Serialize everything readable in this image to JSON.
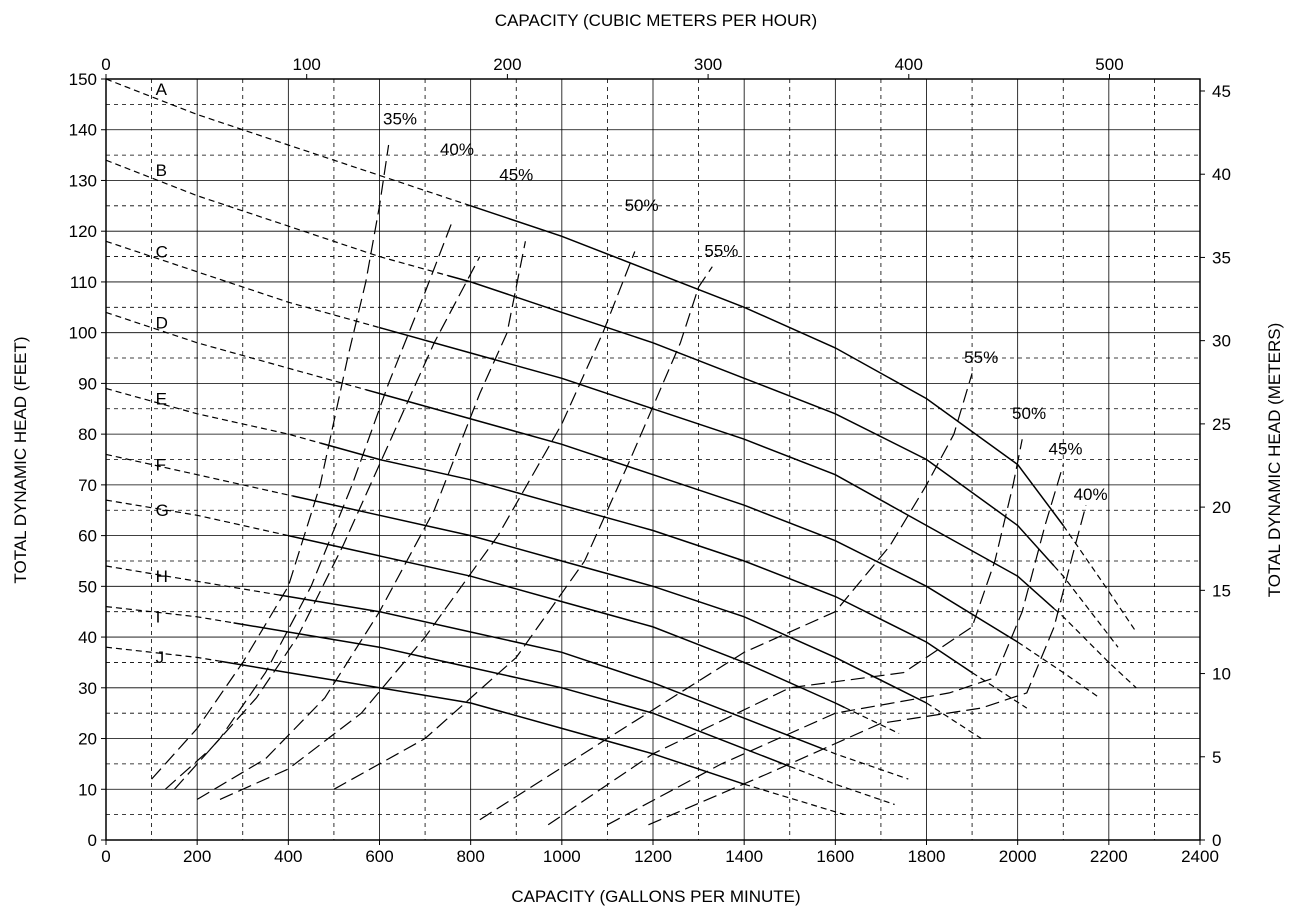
{
  "chart_data": {
    "type": "line",
    "title": "",
    "xlabel": "CAPACITY (GALLONS PER MINUTE)",
    "ylabel": "TOTAL DYNAMIC HEAD (FEET)",
    "x2label": "CAPACITY (CUBIC METERS PER HOUR)",
    "y2label": "TOTAL DYNAMIC HEAD (METERS)",
    "xlim": [
      0,
      2400
    ],
    "ylim": [
      0,
      150
    ],
    "x2lim": [
      0,
      545.1
    ],
    "y2lim": [
      0,
      45.72
    ],
    "xticks": [
      "0",
      "200",
      "400",
      "600",
      "800",
      "1000",
      "1200",
      "1400",
      "1600",
      "1800",
      "2000",
      "2200",
      "2400"
    ],
    "yticks": [
      "0",
      "10",
      "20",
      "30",
      "40",
      "50",
      "60",
      "70",
      "80",
      "90",
      "100",
      "110",
      "120",
      "130",
      "140",
      "150"
    ],
    "x2ticks": [
      "0",
      "100",
      "200",
      "300",
      "400",
      "500"
    ],
    "y2ticks": [
      "0",
      "5",
      "10",
      "15",
      "20",
      "25",
      "30",
      "35",
      "40",
      "45"
    ],
    "grid": true,
    "impeller_curves": [
      {
        "name": "A",
        "points": [
          [
            0,
            150
          ],
          [
            200,
            143
          ],
          [
            400,
            137
          ],
          [
            600,
            131
          ],
          [
            800,
            125
          ],
          [
            1000,
            119
          ],
          [
            1200,
            112
          ],
          [
            1400,
            105
          ],
          [
            1600,
            97
          ],
          [
            1800,
            87
          ],
          [
            2000,
            74
          ],
          [
            2100,
            62
          ],
          [
            2200,
            49
          ],
          [
            2260,
            41
          ]
        ],
        "solid_from": 800,
        "solid_to": 2100
      },
      {
        "name": "B",
        "points": [
          [
            0,
            134
          ],
          [
            200,
            127
          ],
          [
            400,
            121
          ],
          [
            600,
            115
          ],
          [
            800,
            110
          ],
          [
            1000,
            104
          ],
          [
            1200,
            98
          ],
          [
            1400,
            91
          ],
          [
            1600,
            84
          ],
          [
            1800,
            75
          ],
          [
            2000,
            62
          ],
          [
            2100,
            52
          ],
          [
            2220,
            38
          ]
        ],
        "solid_from": 750,
        "solid_to": 2080
      },
      {
        "name": "C",
        "points": [
          [
            0,
            118
          ],
          [
            200,
            112
          ],
          [
            400,
            106
          ],
          [
            600,
            101
          ],
          [
            800,
            96
          ],
          [
            1000,
            91
          ],
          [
            1200,
            85
          ],
          [
            1400,
            79
          ],
          [
            1600,
            72
          ],
          [
            1800,
            62
          ],
          [
            2000,
            52
          ],
          [
            2100,
            44
          ],
          [
            2200,
            35
          ],
          [
            2260,
            30
          ]
        ],
        "solid_from": 600,
        "solid_to": 2080
      },
      {
        "name": "D",
        "points": [
          [
            0,
            104
          ],
          [
            200,
            98
          ],
          [
            400,
            93
          ],
          [
            600,
            88
          ],
          [
            800,
            83
          ],
          [
            1000,
            78
          ],
          [
            1200,
            72
          ],
          [
            1400,
            66
          ],
          [
            1600,
            59
          ],
          [
            1800,
            50
          ],
          [
            2000,
            39
          ],
          [
            2100,
            33
          ],
          [
            2180,
            28
          ]
        ],
        "solid_from": 570,
        "solid_to": 2000
      },
      {
        "name": "E",
        "points": [
          [
            0,
            89
          ],
          [
            200,
            84
          ],
          [
            400,
            80
          ],
          [
            600,
            75
          ],
          [
            800,
            71
          ],
          [
            1000,
            66
          ],
          [
            1200,
            61
          ],
          [
            1400,
            55
          ],
          [
            1600,
            48
          ],
          [
            1800,
            39
          ],
          [
            1900,
            33
          ],
          [
            2020,
            26
          ]
        ],
        "solid_from": 470,
        "solid_to": 1900
      },
      {
        "name": "F",
        "points": [
          [
            0,
            76
          ],
          [
            200,
            72
          ],
          [
            400,
            68
          ],
          [
            600,
            64
          ],
          [
            800,
            60
          ],
          [
            1000,
            55
          ],
          [
            1200,
            50
          ],
          [
            1400,
            44
          ],
          [
            1600,
            36
          ],
          [
            1800,
            27
          ],
          [
            1920,
            20
          ]
        ],
        "solid_from": 410,
        "solid_to": 1800
      },
      {
        "name": "G",
        "points": [
          [
            0,
            67
          ],
          [
            200,
            64
          ],
          [
            400,
            60
          ],
          [
            600,
            56
          ],
          [
            800,
            52
          ],
          [
            1000,
            47
          ],
          [
            1200,
            42
          ],
          [
            1400,
            35
          ],
          [
            1600,
            27
          ],
          [
            1740,
            21
          ]
        ],
        "solid_from": 400,
        "solid_to": 1620
      },
      {
        "name": "H",
        "points": [
          [
            0,
            54
          ],
          [
            200,
            51
          ],
          [
            400,
            48
          ],
          [
            600,
            45
          ],
          [
            800,
            41
          ],
          [
            1000,
            37
          ],
          [
            1200,
            31
          ],
          [
            1400,
            24
          ],
          [
            1600,
            17
          ],
          [
            1760,
            12
          ]
        ],
        "solid_from": 380,
        "solid_to": 1570
      },
      {
        "name": "I",
        "points": [
          [
            0,
            46
          ],
          [
            200,
            44
          ],
          [
            400,
            41
          ],
          [
            600,
            38
          ],
          [
            800,
            34
          ],
          [
            1000,
            30
          ],
          [
            1200,
            25
          ],
          [
            1400,
            18
          ],
          [
            1600,
            11
          ],
          [
            1730,
            7
          ]
        ],
        "solid_from": 280,
        "solid_to": 1500
      },
      {
        "name": "J",
        "points": [
          [
            0,
            38
          ],
          [
            200,
            36
          ],
          [
            400,
            33
          ],
          [
            600,
            30
          ],
          [
            800,
            27
          ],
          [
            1000,
            22
          ],
          [
            1200,
            17
          ],
          [
            1400,
            11
          ],
          [
            1620,
            5
          ]
        ],
        "solid_from": 250,
        "solid_to": 1400
      }
    ],
    "efficiency_curves": [
      {
        "name": "35%",
        "side": "left",
        "points": [
          [
            100,
            12
          ],
          [
            200,
            22
          ],
          [
            300,
            35
          ],
          [
            400,
            50
          ],
          [
            470,
            70
          ],
          [
            530,
            95
          ],
          [
            570,
            110
          ],
          [
            600,
            125
          ],
          [
            620,
            137
          ]
        ]
      },
      {
        "name": "40%",
        "side": "left",
        "points": [
          [
            150,
            10
          ],
          [
            250,
            20
          ],
          [
            350,
            33
          ],
          [
            450,
            50
          ],
          [
            540,
            70
          ],
          [
            620,
            90
          ],
          [
            700,
            108
          ],
          [
            760,
            122
          ]
        ]
      },
      {
        "name": "40%",
        "side": "left",
        "points": [
          [
            130,
            10
          ],
          [
            230,
            18
          ],
          [
            330,
            28
          ],
          [
            420,
            40
          ],
          [
            520,
            58
          ],
          [
            620,
            78
          ],
          [
            720,
            98
          ],
          [
            820,
            115
          ]
        ]
      },
      {
        "name": "45%",
        "side": "left",
        "points": [
          [
            200,
            8
          ],
          [
            350,
            16
          ],
          [
            480,
            28
          ],
          [
            600,
            45
          ],
          [
            720,
            65
          ],
          [
            820,
            88
          ],
          [
            880,
            100
          ],
          [
            920,
            118
          ]
        ]
      },
      {
        "name": "50%",
        "side": "left",
        "points": [
          [
            250,
            8
          ],
          [
            400,
            14
          ],
          [
            560,
            25
          ],
          [
            700,
            40
          ],
          [
            860,
            60
          ],
          [
            1000,
            82
          ],
          [
            1090,
            100
          ],
          [
            1160,
            116
          ]
        ]
      },
      {
        "name": "55%",
        "side": "left",
        "points": [
          [
            500,
            10
          ],
          [
            700,
            20
          ],
          [
            900,
            36
          ],
          [
            1050,
            55
          ],
          [
            1150,
            75
          ],
          [
            1260,
            98
          ],
          [
            1300,
            109
          ],
          [
            1330,
            113
          ]
        ]
      },
      {
        "name": "55%",
        "side": "right",
        "points": [
          [
            820,
            4
          ],
          [
            1100,
            20
          ],
          [
            1400,
            37
          ],
          [
            1600,
            45
          ],
          [
            1720,
            58
          ],
          [
            1800,
            70
          ],
          [
            1860,
            80
          ],
          [
            1900,
            92
          ]
        ]
      },
      {
        "name": "50%",
        "side": "right",
        "points": [
          [
            970,
            3
          ],
          [
            1200,
            17
          ],
          [
            1500,
            30
          ],
          [
            1750,
            33
          ],
          [
            1900,
            42
          ],
          [
            1950,
            55
          ],
          [
            1990,
            70
          ],
          [
            2010,
            79
          ]
        ]
      },
      {
        "name": "45%",
        "side": "right",
        "points": [
          [
            1100,
            3
          ],
          [
            1350,
            15
          ],
          [
            1600,
            25
          ],
          [
            1850,
            29
          ],
          [
            1950,
            32
          ],
          [
            2010,
            45
          ],
          [
            2060,
            62
          ],
          [
            2100,
            74
          ]
        ]
      },
      {
        "name": "40%",
        "side": "right",
        "points": [
          [
            1190,
            3
          ],
          [
            1450,
            13
          ],
          [
            1700,
            23
          ],
          [
            1920,
            26
          ],
          [
            2020,
            29
          ],
          [
            2080,
            42
          ],
          [
            2120,
            56
          ],
          [
            2150,
            66
          ]
        ]
      }
    ],
    "efficiency_labels": [
      {
        "text": "35%",
        "x": 645,
        "y": 141
      },
      {
        "text": "40%",
        "x": 770,
        "y": 135
      },
      {
        "text": "45%",
        "x": 900,
        "y": 130
      },
      {
        "text": "50%",
        "x": 1175,
        "y": 124
      },
      {
        "text": "55%",
        "x": 1350,
        "y": 115
      },
      {
        "text": "55%",
        "x": 1920,
        "y": 94
      },
      {
        "text": "50%",
        "x": 2025,
        "y": 83
      },
      {
        "text": "45%",
        "x": 2105,
        "y": 76
      },
      {
        "text": "40%",
        "x": 2160,
        "y": 67
      }
    ]
  }
}
